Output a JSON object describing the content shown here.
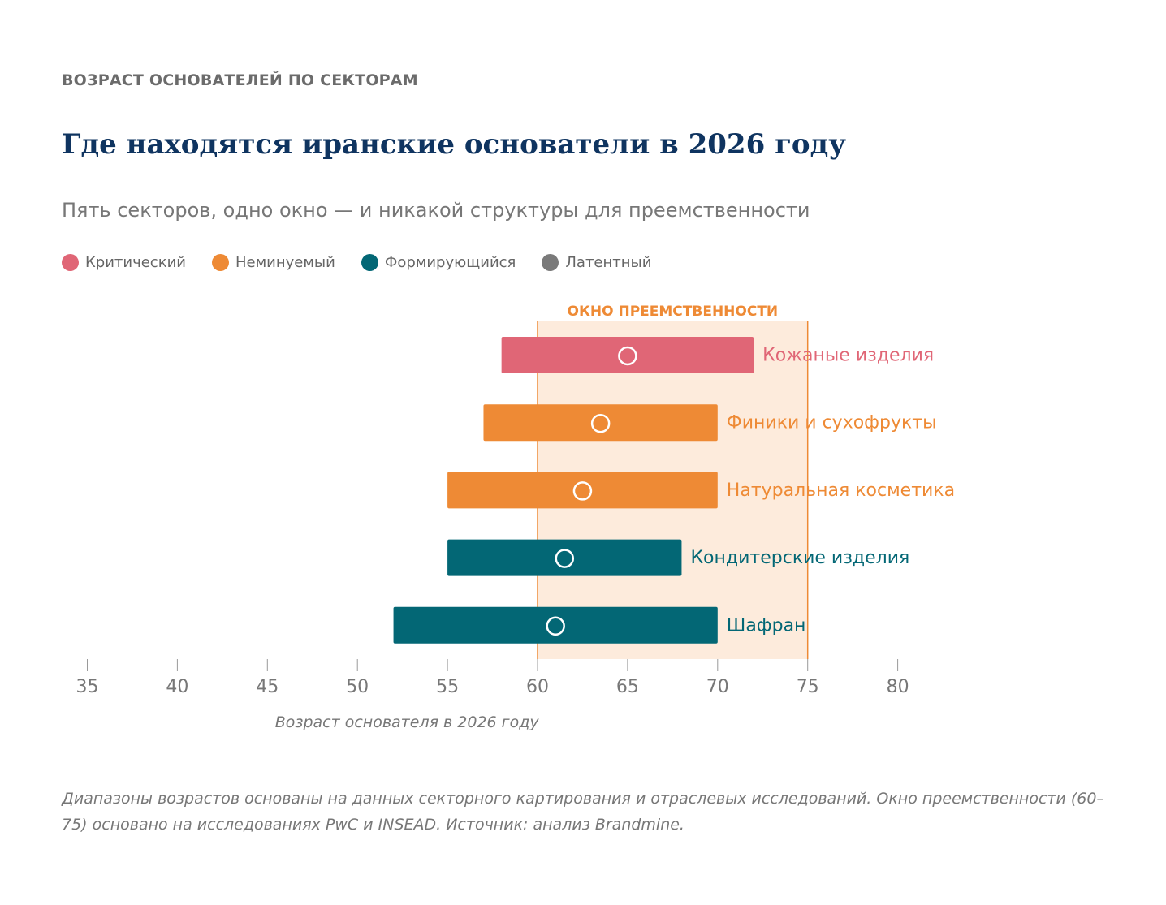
{
  "header": {
    "eyebrow": "ВОЗРАСТ ОСНОВАТЕЛЕЙ ПО СЕКТОРАМ",
    "title": "Где находятся иранские основатели в 2026 году",
    "subtitle": "Пять секторов, одно окно — и никакой структуры для преемственности"
  },
  "legend": [
    {
      "label": "Критический",
      "color": "#e06676"
    },
    {
      "label": "Неминуемый",
      "color": "#ee8a35"
    },
    {
      "label": "Формирующийся",
      "color": "#036775"
    },
    {
      "label": "Латентный",
      "color": "#7a7a7a"
    }
  ],
  "chart_data": {
    "type": "range-bar",
    "window": {
      "label": "ОКНО ПРЕЕМСТВЕННОСТИ",
      "start": 60,
      "end": 75,
      "color": "#ee8a35",
      "fill": "#fdebdc"
    },
    "xlim": [
      35,
      80
    ],
    "xticks": [
      35,
      40,
      45,
      50,
      55,
      60,
      65,
      70,
      75,
      80
    ],
    "xlabel": "Возраст основателя в 2026 году",
    "series": [
      {
        "name": "Кожаные изделия",
        "min": 58,
        "max": 72,
        "mid": 65,
        "color": "#e06676"
      },
      {
        "name": "Финики и сухофрукты",
        "min": 57,
        "max": 70,
        "mid": 63.5,
        "color": "#ee8a35"
      },
      {
        "name": "Натуральная косметика",
        "min": 55,
        "max": 70,
        "mid": 62.5,
        "color": "#ee8a35"
      },
      {
        "name": "Кондитерские изделия",
        "min": 55,
        "max": 68,
        "mid": 61.5,
        "color": "#036775"
      },
      {
        "name": "Шафран",
        "min": 52,
        "max": 70,
        "mid": 61,
        "color": "#036775"
      }
    ]
  },
  "footnote": "Диапазоны возрастов основаны на данных секторного картирования и отраслевых исследований. Окно преемственности (60–75) основано на исследованиях PwC и INSEAD. Источник: анализ Brandmine."
}
